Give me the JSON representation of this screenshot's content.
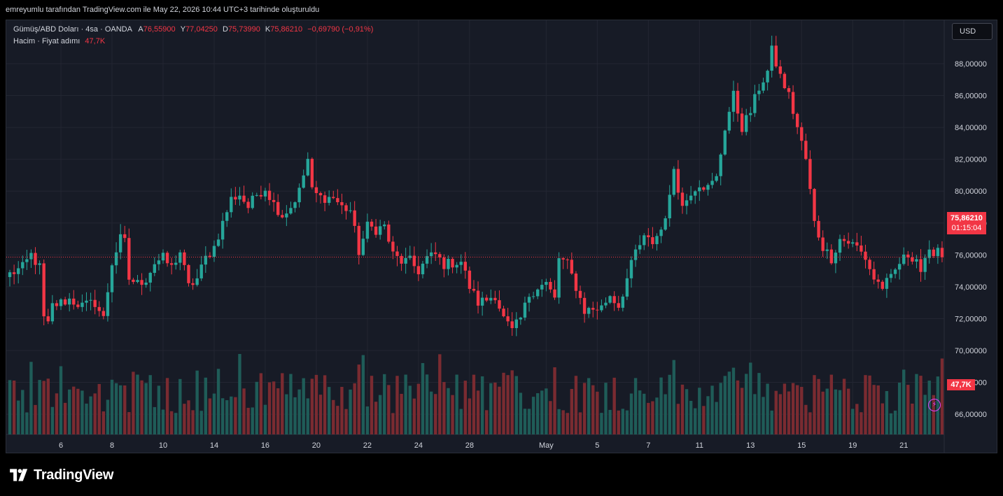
{
  "header": {
    "caption": "emreyumlu tarafından TradingView.com ile May 22, 2026 10:44 UTC+3 tarihinde oluşturuldu"
  },
  "legend": {
    "symbol": "Gümüş/ABD Doları · 4sa · OANDA",
    "open_label": "A",
    "open": "76,55900",
    "high_label": "Y",
    "high": "77,04250",
    "low_label": "D",
    "low": "75,73990",
    "close_label": "K",
    "close": "75,86210",
    "change": "−0,69790 (−0,91%)",
    "volume_label": "Hacim · Fiyat adımı",
    "volume_value": "47,7K"
  },
  "currency_button": "USD",
  "price_tag": {
    "price": "75,86210",
    "countdown": "01:15:04"
  },
  "volume_tag": "47,7K",
  "brand": {
    "name": "TradingView",
    "icon": "tradingview-logo-icon"
  },
  "colors": {
    "up": "#26a69a",
    "down": "#f23645",
    "background": "#171b26",
    "grid": "#232632",
    "volume_up": "#1f5c58",
    "volume_down": "#7a2b31",
    "current_price_line": "#f23645"
  },
  "chart_data": {
    "type": "candlestick",
    "price_axis": {
      "min": 64,
      "max": 90,
      "ticks": [
        88,
        86,
        84,
        82,
        80,
        78,
        76,
        74,
        72,
        70,
        68,
        66
      ],
      "tick_labels": [
        "88,00000",
        "86,00000",
        "84,00000",
        "82,00000",
        "80,00000",
        "78,00000",
        "76,00000",
        "74,00000",
        "72,00000",
        "70,00000",
        "68,00000",
        "66,00000"
      ],
      "position": "right"
    },
    "time_axis": {
      "labels": [
        {
          "label": "6",
          "bar": 12
        },
        {
          "label": "8",
          "bar": 24
        },
        {
          "label": "10",
          "bar": 36
        },
        {
          "label": "14",
          "bar": 48
        },
        {
          "label": "16",
          "bar": 60
        },
        {
          "label": "20",
          "bar": 72
        },
        {
          "label": "22",
          "bar": 84
        },
        {
          "label": "24",
          "bar": 96
        },
        {
          "label": "28",
          "bar": 108
        },
        {
          "label": "May",
          "bar": 126
        },
        {
          "label": "5",
          "bar": 138
        },
        {
          "label": "7",
          "bar": 150
        },
        {
          "label": "11",
          "bar": 162
        },
        {
          "label": "13",
          "bar": 174
        },
        {
          "label": "15",
          "bar": 186
        },
        {
          "label": "19",
          "bar": 198
        },
        {
          "label": "21",
          "bar": 210
        }
      ]
    },
    "current_price": 75.8621,
    "grid": true,
    "anchors": [
      [
        0,
        74.8
      ],
      [
        3,
        75.2
      ],
      [
        5,
        76.0
      ],
      [
        7,
        75.2
      ],
      [
        8,
        72.0
      ],
      [
        9,
        71.6
      ],
      [
        10,
        72.8
      ],
      [
        12,
        73.0
      ],
      [
        14,
        73.2
      ],
      [
        17,
        72.8
      ],
      [
        20,
        73.0
      ],
      [
        22,
        72.0
      ],
      [
        24,
        75.5
      ],
      [
        26,
        77.0
      ],
      [
        27,
        76.8
      ],
      [
        28,
        74.5
      ],
      [
        30,
        74.2
      ],
      [
        32,
        74.5
      ],
      [
        34,
        75.5
      ],
      [
        36,
        75.8
      ],
      [
        38,
        75.2
      ],
      [
        40,
        76.2
      ],
      [
        42,
        74.0
      ],
      [
        44,
        74.5
      ],
      [
        46,
        75.8
      ],
      [
        48,
        76.5
      ],
      [
        50,
        78.0
      ],
      [
        52,
        79.5
      ],
      [
        54,
        79.8
      ],
      [
        56,
        79.0
      ],
      [
        58,
        79.8
      ],
      [
        60,
        80.2
      ],
      [
        62,
        79.2
      ],
      [
        64,
        78.5
      ],
      [
        66,
        79.0
      ],
      [
        68,
        80.0
      ],
      [
        70,
        82.0
      ],
      [
        71,
        80.0
      ],
      [
        73,
        79.6
      ],
      [
        76,
        79.6
      ],
      [
        78,
        79.0
      ],
      [
        80,
        78.8
      ],
      [
        82,
        76.2
      ],
      [
        84,
        77.8
      ],
      [
        86,
        77.6
      ],
      [
        88,
        77.8
      ],
      [
        90,
        76.0
      ],
      [
        92,
        75.6
      ],
      [
        94,
        75.6
      ],
      [
        96,
        75.0
      ],
      [
        98,
        75.8
      ],
      [
        100,
        76.0
      ],
      [
        102,
        75.4
      ],
      [
        104,
        75.5
      ],
      [
        106,
        75.6
      ],
      [
        108,
        74.0
      ],
      [
        110,
        73.0
      ],
      [
        112,
        73.2
      ],
      [
        114,
        73.5
      ],
      [
        116,
        72.0
      ],
      [
        118,
        71.2
      ],
      [
        120,
        72.0
      ],
      [
        122,
        73.5
      ],
      [
        124,
        74.0
      ],
      [
        126,
        74.2
      ],
      [
        128,
        73.2
      ],
      [
        129,
        75.8
      ],
      [
        131,
        75.4
      ],
      [
        133,
        74.0
      ],
      [
        135,
        72.5
      ],
      [
        137,
        72.6
      ],
      [
        139,
        72.7
      ],
      [
        141,
        73.5
      ],
      [
        143,
        72.8
      ],
      [
        145,
        74.5
      ],
      [
        147,
        76.2
      ],
      [
        149,
        77.0
      ],
      [
        151,
        76.8
      ],
      [
        153,
        77.6
      ],
      [
        155,
        79.5
      ],
      [
        156,
        81.5
      ],
      [
        158,
        79.0
      ],
      [
        160,
        80.0
      ],
      [
        162,
        80.5
      ],
      [
        164,
        80.2
      ],
      [
        166,
        80.8
      ],
      [
        168,
        84.0
      ],
      [
        170,
        86.0
      ],
      [
        172,
        84.0
      ],
      [
        174,
        85.0
      ],
      [
        176,
        86.5
      ],
      [
        178,
        87.5
      ],
      [
        179,
        88.8
      ],
      [
        181,
        87.2
      ],
      [
        183,
        86.0
      ],
      [
        185,
        84.0
      ],
      [
        187,
        82.0
      ],
      [
        189,
        78.0
      ],
      [
        191,
        76.5
      ],
      [
        193,
        75.8
      ],
      [
        195,
        77.0
      ],
      [
        197,
        76.8
      ],
      [
        199,
        76.5
      ],
      [
        201,
        75.8
      ],
      [
        203,
        74.5
      ],
      [
        205,
        74.0
      ],
      [
        207,
        74.5
      ],
      [
        209,
        75.5
      ],
      [
        211,
        76.0
      ],
      [
        213,
        75.8
      ],
      [
        214,
        75.0
      ],
      [
        216,
        76.0
      ],
      [
        218,
        76.5
      ],
      [
        219,
        75.9
      ]
    ],
    "bar_count": 220
  }
}
